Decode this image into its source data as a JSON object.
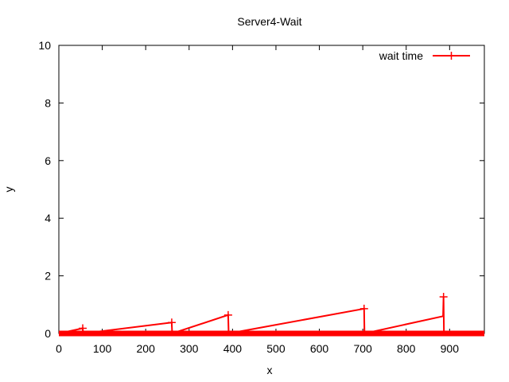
{
  "chart_data": {
    "type": "line",
    "title": "Server4-Wait",
    "xlabel": "x",
    "ylabel": "y",
    "xlim": [
      0,
      980
    ],
    "ylim": [
      0,
      10
    ],
    "xticks": [
      0,
      100,
      200,
      300,
      400,
      500,
      600,
      700,
      800,
      900
    ],
    "yticks": [
      0,
      2,
      4,
      6,
      8,
      10
    ],
    "grid": false,
    "legend_position": "top-right",
    "series": [
      {
        "name": "wait time",
        "color": "#ff0000",
        "marker": "plus",
        "x": [
          0,
          55,
          56,
          260,
          261,
          390,
          391,
          703,
          704,
          885,
          886,
          887,
          980
        ],
        "y": [
          0,
          0.18,
          0,
          0.38,
          0,
          0.64,
          0,
          0.86,
          0,
          0.6,
          1.27,
          0,
          0
        ],
        "markers_x": [
          55,
          260,
          390,
          703,
          886
        ],
        "markers_y": [
          0.18,
          0.38,
          0.64,
          0.86,
          1.27
        ]
      }
    ]
  }
}
